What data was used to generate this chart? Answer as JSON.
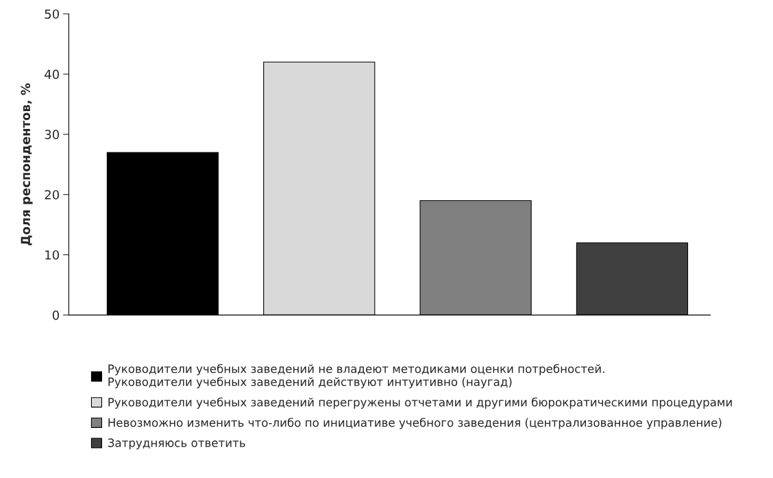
{
  "chart_data": {
    "type": "bar",
    "ylabel": "Доля респондентов, %",
    "categories": [
      null,
      null,
      null,
      null
    ],
    "series": [
      {
        "name": "Руководители учебных заведений не владеют методиками оценки потребностей.\nРуководители учебных заведений действуют интуитивно (наугад)",
        "color": "#000000",
        "values": [
          27,
          null,
          null,
          null
        ]
      },
      {
        "name": "Руководители учебных заведений перегружены отчетами и другими бюрократическими процедурами",
        "color": "#d9d9d9",
        "values": [
          null,
          42,
          null,
          null
        ]
      },
      {
        "name": "Невозможно изменить что-либо по инициативе учебного заведения (централизованное управление)",
        "color": "#808080",
        "values": [
          null,
          null,
          19,
          null
        ]
      },
      {
        "name": "Затрудняюсь ответить",
        "color": "#404040",
        "values": [
          null,
          null,
          null,
          12
        ]
      }
    ],
    "ylim": [
      0,
      50
    ],
    "yticks": [
      0,
      10,
      20,
      30,
      40,
      50
    ],
    "grid": false,
    "legend": "bottom"
  }
}
